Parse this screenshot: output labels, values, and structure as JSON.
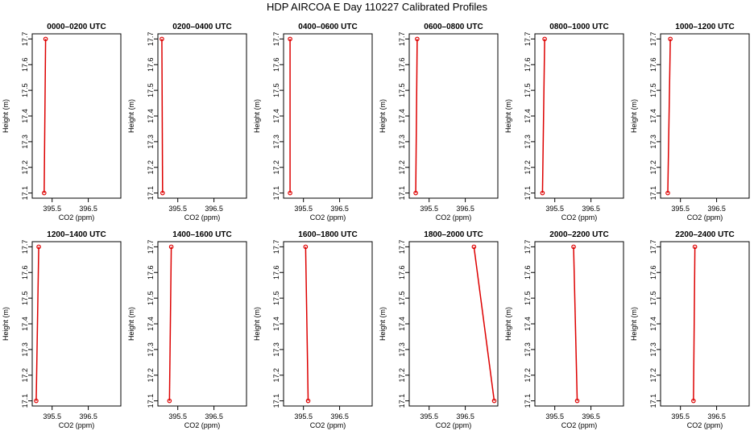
{
  "title": "HDP AIRCOA E  Day 110227  Calibrated Profiles",
  "colors": {
    "profile": "#dd0000",
    "axis": "#000000"
  },
  "chart_data": [
    {
      "type": "line",
      "title": "0000–0200 UTC",
      "xlabel": "CO2 (ppm)",
      "ylabel": "Height (m)",
      "xlim": [
        394.95,
        397.4
      ],
      "ylim": [
        17.08,
        17.72
      ],
      "xticks": [
        "395.5",
        "396.5"
      ],
      "yticks": [
        "17.1",
        "17.2",
        "17.3",
        "17.4",
        "17.5",
        "17.6",
        "17.7"
      ],
      "x": [
        395.28,
        395.32
      ],
      "y": [
        17.1,
        17.7
      ],
      "series": [
        {
          "x": [
            395.28,
            395.32
          ],
          "y": [
            17.1,
            17.7
          ]
        }
      ]
    },
    {
      "type": "line",
      "title": "0200–0400 UTC",
      "xlabel": "CO2 (ppm)",
      "ylabel": "Height (m)",
      "xlim": [
        394.95,
        397.4
      ],
      "ylim": [
        17.08,
        17.72
      ],
      "xticks": [
        "395.5",
        "396.5"
      ],
      "yticks": [
        "17.1",
        "17.2",
        "17.3",
        "17.4",
        "17.5",
        "17.6",
        "17.7"
      ],
      "series": [
        {
          "x": [
            395.08,
            395.06
          ],
          "y": [
            17.1,
            17.7
          ]
        }
      ]
    },
    {
      "type": "line",
      "title": "0400–0600 UTC",
      "xlabel": "CO2 (ppm)",
      "ylabel": "Height (m)",
      "xlim": [
        394.95,
        397.4
      ],
      "ylim": [
        17.08,
        17.72
      ],
      "xticks": [
        "395.5",
        "396.5"
      ],
      "yticks": [
        "17.1",
        "17.2",
        "17.3",
        "17.4",
        "17.5",
        "17.6",
        "17.7"
      ],
      "series": [
        {
          "x": [
            395.13,
            395.13
          ],
          "y": [
            17.1,
            17.7
          ]
        }
      ]
    },
    {
      "type": "line",
      "title": "0600–0800 UTC",
      "xlabel": "CO2 (ppm)",
      "ylabel": "Height (m)",
      "xlim": [
        394.95,
        397.4
      ],
      "ylim": [
        17.08,
        17.72
      ],
      "xticks": [
        "395.5",
        "396.5"
      ],
      "yticks": [
        "17.1",
        "17.2",
        "17.3",
        "17.4",
        "17.5",
        "17.6",
        "17.7"
      ],
      "series": [
        {
          "x": [
            395.13,
            395.17
          ],
          "y": [
            17.1,
            17.7
          ]
        }
      ]
    },
    {
      "type": "line",
      "title": "0800–1000 UTC",
      "xlabel": "CO2 (ppm)",
      "ylabel": "Height (m)",
      "xlim": [
        394.95,
        397.4
      ],
      "ylim": [
        17.08,
        17.72
      ],
      "xticks": [
        "395.5",
        "396.5"
      ],
      "yticks": [
        "17.1",
        "17.2",
        "17.3",
        "17.4",
        "17.5",
        "17.6",
        "17.7"
      ],
      "series": [
        {
          "x": [
            395.16,
            395.22
          ],
          "y": [
            17.1,
            17.7
          ]
        }
      ]
    },
    {
      "type": "line",
      "title": "1000–1200 UTC",
      "xlabel": "CO2 (ppm)",
      "ylabel": "Height (m)",
      "xlim": [
        394.95,
        397.4
      ],
      "ylim": [
        17.08,
        17.72
      ],
      "xticks": [
        "395.5",
        "396.5"
      ],
      "yticks": [
        "17.1",
        "17.2",
        "17.3",
        "17.4",
        "17.5",
        "17.6",
        "17.7"
      ],
      "series": [
        {
          "x": [
            395.15,
            395.22
          ],
          "y": [
            17.1,
            17.7
          ]
        }
      ]
    },
    {
      "type": "line",
      "title": "1200–1400 UTC",
      "xlabel": "CO2 (ppm)",
      "ylabel": "Height (m)",
      "xlim": [
        394.95,
        397.4
      ],
      "ylim": [
        17.08,
        17.72
      ],
      "xticks": [
        "395.5",
        "396.5"
      ],
      "yticks": [
        "17.1",
        "17.2",
        "17.3",
        "17.4",
        "17.5",
        "17.6",
        "17.7"
      ],
      "series": [
        {
          "x": [
            395.06,
            395.13
          ],
          "y": [
            17.1,
            17.7
          ]
        }
      ]
    },
    {
      "type": "line",
      "title": "1400–1600 UTC",
      "xlabel": "CO2 (ppm)",
      "ylabel": "Height (m)",
      "xlim": [
        394.95,
        397.4
      ],
      "ylim": [
        17.08,
        17.72
      ],
      "xticks": [
        "395.5",
        "396.5"
      ],
      "yticks": [
        "17.1",
        "17.2",
        "17.3",
        "17.4",
        "17.5",
        "17.6",
        "17.7"
      ],
      "series": [
        {
          "x": [
            395.27,
            395.32
          ],
          "y": [
            17.1,
            17.7
          ]
        }
      ]
    },
    {
      "type": "line",
      "title": "1600–1800 UTC",
      "xlabel": "CO2 (ppm)",
      "ylabel": "Height (m)",
      "xlim": [
        394.95,
        397.4
      ],
      "ylim": [
        17.08,
        17.72
      ],
      "xticks": [
        "395.5",
        "396.5"
      ],
      "yticks": [
        "17.1",
        "17.2",
        "17.3",
        "17.4",
        "17.5",
        "17.6",
        "17.7"
      ],
      "series": [
        {
          "x": [
            395.63,
            395.56
          ],
          "y": [
            17.1,
            17.7
          ]
        }
      ]
    },
    {
      "type": "line",
      "title": "1800–2000 UTC",
      "xlabel": "CO2 (ppm)",
      "ylabel": "Height (m)",
      "xlim": [
        394.95,
        397.4
      ],
      "ylim": [
        17.08,
        17.72
      ],
      "xticks": [
        "395.5",
        "396.5"
      ],
      "yticks": [
        "17.1",
        "17.2",
        "17.3",
        "17.4",
        "17.5",
        "17.6",
        "17.7"
      ],
      "series": [
        {
          "x": [
            397.3,
            396.74
          ],
          "y": [
            17.1,
            17.7
          ]
        }
      ]
    },
    {
      "type": "line",
      "title": "2000–2200 UTC",
      "xlabel": "CO2 (ppm)",
      "ylabel": "Height (m)",
      "xlim": [
        394.95,
        397.4
      ],
      "ylim": [
        17.08,
        17.72
      ],
      "xticks": [
        "395.5",
        "396.5"
      ],
      "yticks": [
        "17.1",
        "17.2",
        "17.3",
        "17.4",
        "17.5",
        "17.6",
        "17.7"
      ],
      "series": [
        {
          "x": [
            396.12,
            396.02
          ],
          "y": [
            17.1,
            17.7
          ]
        }
      ]
    },
    {
      "type": "line",
      "title": "2200–2400 UTC",
      "xlabel": "CO2 (ppm)",
      "ylabel": "Height (m)",
      "xlim": [
        394.95,
        397.4
      ],
      "ylim": [
        17.08,
        17.72
      ],
      "xticks": [
        "395.5",
        "396.5"
      ],
      "yticks": [
        "17.1",
        "17.2",
        "17.3",
        "17.4",
        "17.5",
        "17.6",
        "17.7"
      ],
      "series": [
        {
          "x": [
            395.86,
            395.9
          ],
          "y": [
            17.1,
            17.7
          ]
        }
      ]
    }
  ]
}
